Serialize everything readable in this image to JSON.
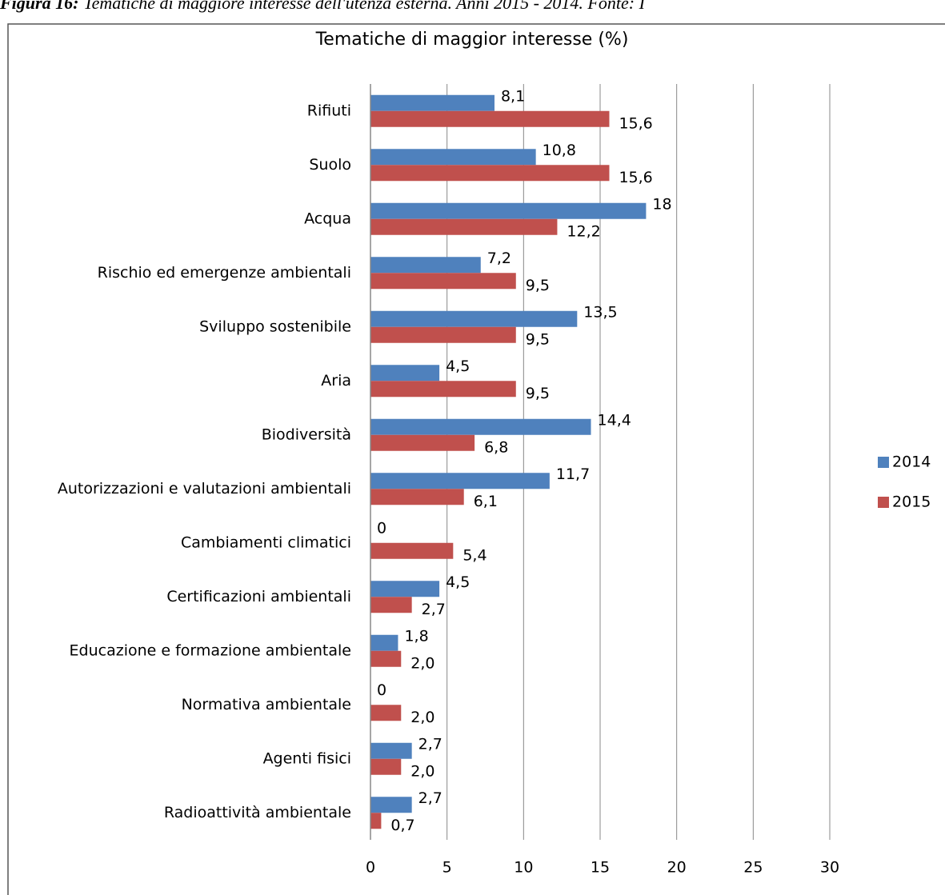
{
  "caption": {
    "label": "Figura 16:",
    "text": "Tematiche di maggiore interesse dell'utenza esterna. Anni 2015 - 2014. Fonte: I"
  },
  "chart_data": {
    "type": "hbar",
    "title": "Tematiche di maggior interesse (%)",
    "categories": [
      "Rifiuti",
      "Suolo",
      "Acqua",
      "Rischio ed emergenze ambientali",
      "Sviluppo sostenibile",
      "Aria",
      "Biodiversità",
      "Autorizzazioni e valutazioni ambientali",
      "Cambiamenti climatici",
      "Certificazioni ambientali",
      "Educazione e formazione ambientale",
      "Normativa ambientale",
      "Agenti fisici",
      "Radioattività ambientale"
    ],
    "series": [
      {
        "name": "2014",
        "color": "#4f81bd",
        "values": [
          8.1,
          10.8,
          18,
          7.2,
          13.5,
          4.5,
          14.4,
          11.7,
          0,
          4.5,
          1.8,
          0,
          2.7,
          2.7
        ],
        "value_labels": [
          "8,1",
          "10,8",
          "18",
          "7,2",
          "13,5",
          "4,5",
          "14,4",
          "11,7",
          "0",
          "4,5",
          "1,8",
          "0",
          "2,7",
          "2,7"
        ]
      },
      {
        "name": "2015",
        "color": "#c0504d",
        "values": [
          15.6,
          15.6,
          12.2,
          9.5,
          9.5,
          9.5,
          6.8,
          6.1,
          5.4,
          2.7,
          2.0,
          2.0,
          2.0,
          0.7
        ],
        "value_labels": [
          "15,6",
          "15,6",
          "12,2",
          "9,5",
          "9,5",
          "9,5",
          "6,8",
          "6,1",
          "5,4",
          "2,7",
          "2,0",
          "2,0",
          "2,0",
          "0,7"
        ]
      }
    ],
    "xlim": [
      0,
      30
    ],
    "xticks": [
      0,
      5,
      10,
      15,
      20,
      25,
      30
    ],
    "grid": true,
    "legend": "right"
  }
}
